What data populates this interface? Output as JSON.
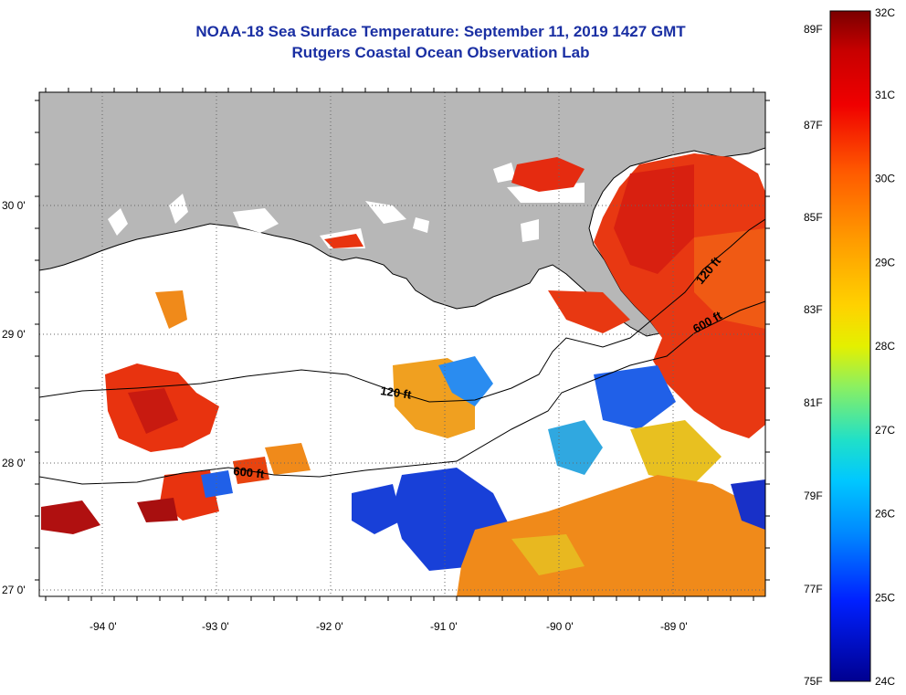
{
  "title": {
    "line1": "NOAA-18 Sea Surface Temperature:  September 11, 2019 1427 GMT",
    "line2": "Rutgers Coastal Ocean Observation Lab"
  },
  "axes": {
    "lon_labels": [
      "-94 0'",
      "-93 0'",
      "-92 0'",
      "-91 0'",
      "-90 0'",
      "-89 0'"
    ],
    "lat_labels": [
      "30 0'",
      "29 0'",
      "28 0'",
      "27 0'"
    ],
    "lon_range": [
      -94.5,
      -88.2
    ],
    "lat_range": [
      26.95,
      30.85
    ],
    "grid": "dotted"
  },
  "isobaths": [
    {
      "label": "120 ft"
    },
    {
      "label": "600 ft"
    }
  ],
  "isobath_labels": [
    "120 ft",
    "600 ft",
    "120 ft",
    "600 ft"
  ],
  "colorbar": {
    "celsius": [
      "32C",
      "31C",
      "30C",
      "29C",
      "28C",
      "27C",
      "26C",
      "25C",
      "24C"
    ],
    "fahrenheit": [
      "89F",
      "87F",
      "85F",
      "83F",
      "81F",
      "79F",
      "77F",
      "75F"
    ],
    "range_c": [
      24,
      32
    ]
  },
  "colors": {
    "land": "#b7b7b7",
    "title": "#1a2fa3",
    "warm": "#e8330f",
    "hot": "#a80f0f"
  }
}
